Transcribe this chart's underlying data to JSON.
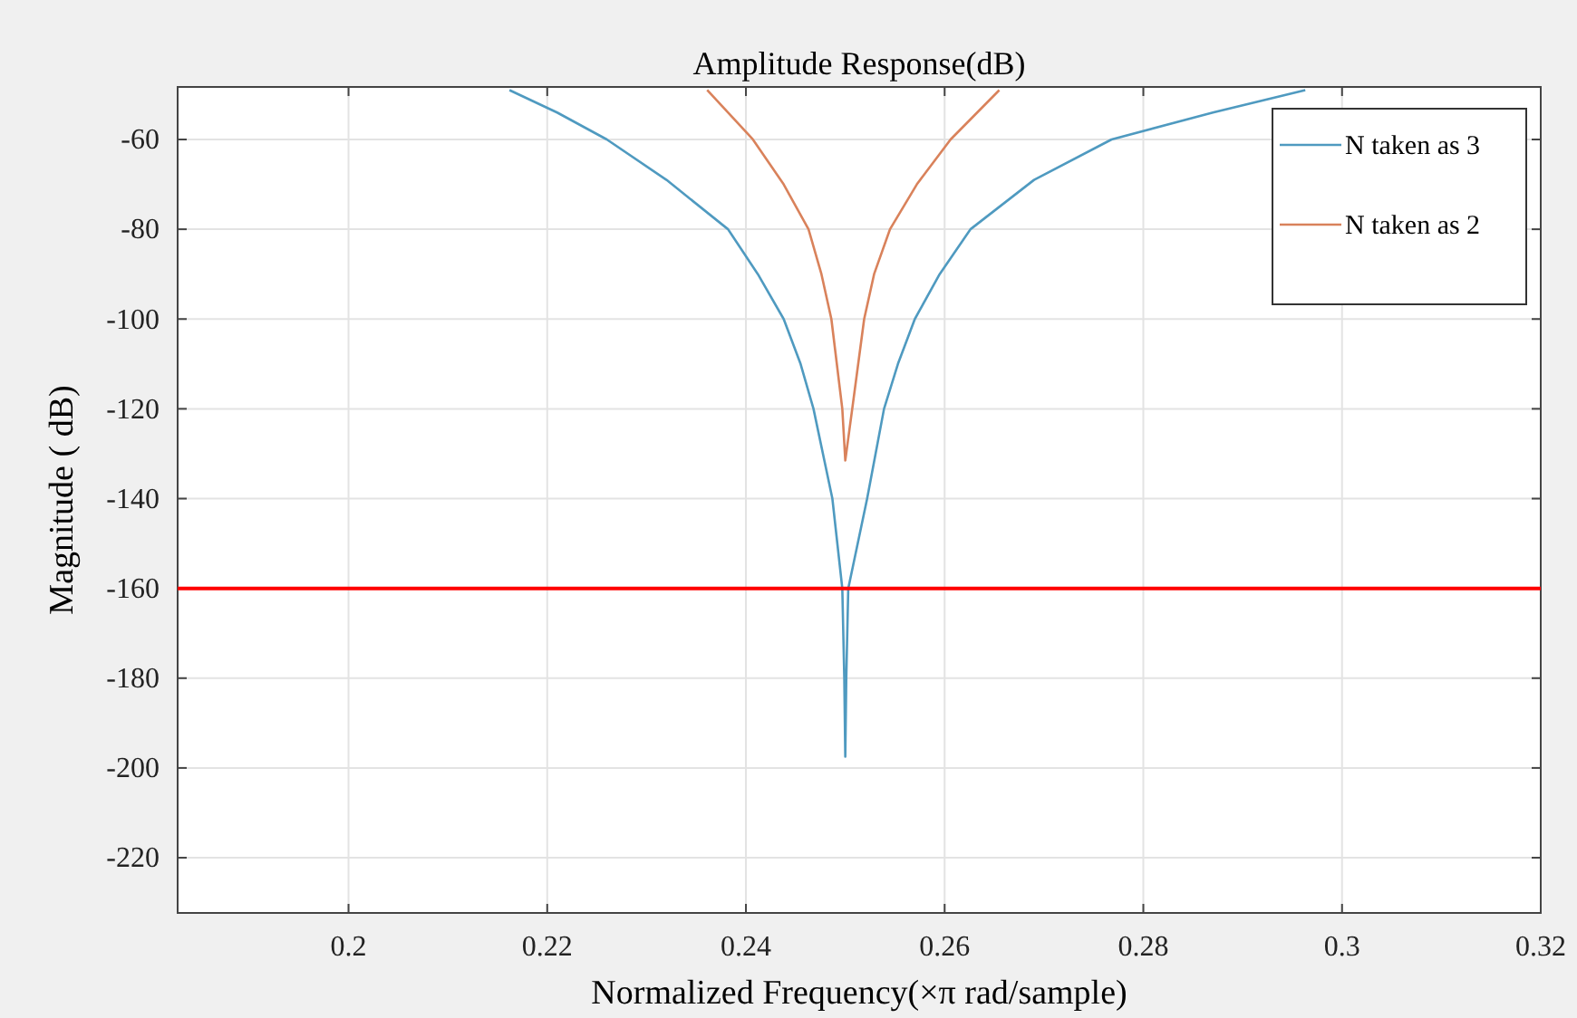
{
  "chart_data": {
    "type": "line",
    "title": "Amplitude Response(dB)",
    "xlabel": "Normalized Frequency(×π rad/sample)",
    "ylabel": "Magnitude ( dB)",
    "xlim": [
      0.1828,
      0.32
    ],
    "ylim": [
      -232.3,
      -48.3
    ],
    "xticks": [
      0.2,
      0.22,
      0.24,
      0.26,
      0.28,
      0.3,
      0.32
    ],
    "yticks": [
      -220,
      -200,
      -180,
      -160,
      -140,
      -120,
      -100,
      -80,
      -60
    ],
    "grid": true,
    "legend": "top right",
    "series": [
      {
        "name": "N taken as 3",
        "color": "#4f9ac0",
        "x": [
          0.2162,
          0.221,
          0.226,
          0.232,
          0.2382,
          0.2412,
          0.2438,
          0.2455,
          0.2468,
          0.2487,
          0.2497,
          0.2499,
          0.25,
          0.2501,
          0.2503,
          0.2522,
          0.2539,
          0.2553,
          0.257,
          0.2595,
          0.2626,
          0.269,
          0.2768,
          0.287,
          0.2963
        ],
        "values": [
          -49,
          -54,
          -60,
          -69,
          -80,
          -90,
          -100,
          -110,
          -120,
          -140,
          -160,
          -180,
          -197.5,
          -180,
          -160,
          -140,
          -120,
          -110,
          -100,
          -90,
          -80,
          -69,
          -60,
          -54,
          -49
        ]
      },
      {
        "name": "N taken as 2",
        "color": "#d9825b",
        "x": [
          0.2361,
          0.2407,
          0.2438,
          0.2463,
          0.2476,
          0.2486,
          0.2497,
          0.25,
          0.2507,
          0.2519,
          0.2529,
          0.2545,
          0.2572,
          0.2606,
          0.2655
        ],
        "values": [
          -49,
          -60,
          -70,
          -80,
          -90,
          -100,
          -120,
          -131.5,
          -120,
          -100,
          -90,
          -80,
          -70,
          -60,
          -49
        ]
      }
    ],
    "ref_lines": [
      {
        "axis": "y",
        "value": -160,
        "color": "#ff0000"
      }
    ]
  }
}
